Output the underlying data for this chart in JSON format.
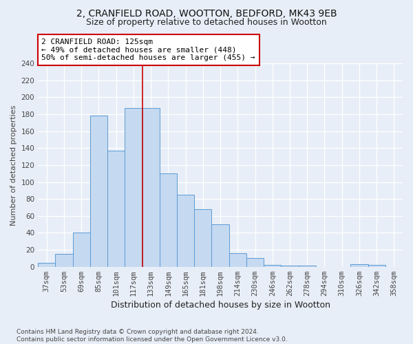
{
  "title_line1": "2, CRANFIELD ROAD, WOOTTON, BEDFORD, MK43 9EB",
  "title_line2": "Size of property relative to detached houses in Wootton",
  "xlabel": "Distribution of detached houses by size in Wootton",
  "ylabel": "Number of detached properties",
  "categories": [
    "37sqm",
    "53sqm",
    "69sqm",
    "85sqm",
    "101sqm",
    "117sqm",
    "133sqm",
    "149sqm",
    "165sqm",
    "181sqm",
    "198sqm",
    "214sqm",
    "230sqm",
    "246sqm",
    "262sqm",
    "278sqm",
    "294sqm",
    "310sqm",
    "326sqm",
    "342sqm",
    "358sqm"
  ],
  "values": [
    5,
    15,
    40,
    178,
    137,
    187,
    187,
    110,
    85,
    68,
    50,
    16,
    10,
    2,
    1,
    1,
    0,
    0,
    3,
    2,
    0
  ],
  "bar_color": "#c5d9f0",
  "bar_edge_color": "#5b9bd5",
  "bar_edge_width": 0.7,
  "vline_x_index": 6,
  "vline_color": "#cc0000",
  "annotation_text": "2 CRANFIELD ROAD: 125sqm\n← 49% of detached houses are smaller (448)\n50% of semi-detached houses are larger (455) →",
  "annotation_box_color": "white",
  "annotation_edge_color": "#cc0000",
  "ylim": [
    0,
    240
  ],
  "yticks": [
    0,
    20,
    40,
    60,
    80,
    100,
    120,
    140,
    160,
    180,
    200,
    220,
    240
  ],
  "footnote": "Contains HM Land Registry data © Crown copyright and database right 2024.\nContains public sector information licensed under the Open Government Licence v3.0.",
  "bg_color": "#e8eef7",
  "plot_bg_color": "#e8eef7",
  "grid_color": "white",
  "title_fontsize": 10,
  "subtitle_fontsize": 9,
  "xlabel_fontsize": 9,
  "ylabel_fontsize": 8,
  "tick_fontsize": 7.5,
  "annotation_fontsize": 8,
  "footnote_fontsize": 6.5
}
